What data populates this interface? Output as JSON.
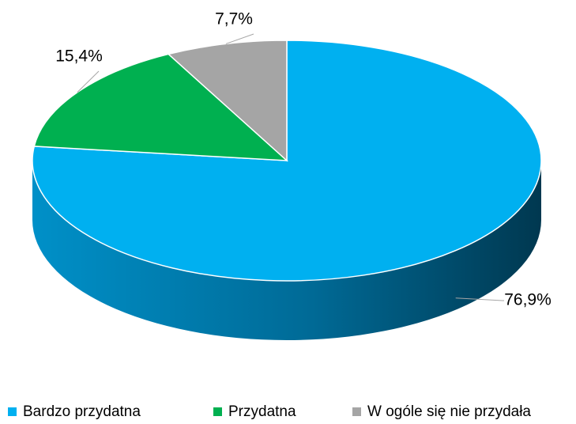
{
  "chart_data": {
    "type": "pie",
    "categories": [
      "Bardzo przydatna",
      "Przydatna",
      "W ogóle się nie przydała"
    ],
    "values": [
      76.9,
      15.4,
      7.7
    ],
    "value_labels": [
      "76,9%",
      "15,4%",
      "7,7%"
    ],
    "colors": [
      "#00b0f0",
      "#00b050",
      "#a5a5a5"
    ],
    "legend": "bottom"
  }
}
